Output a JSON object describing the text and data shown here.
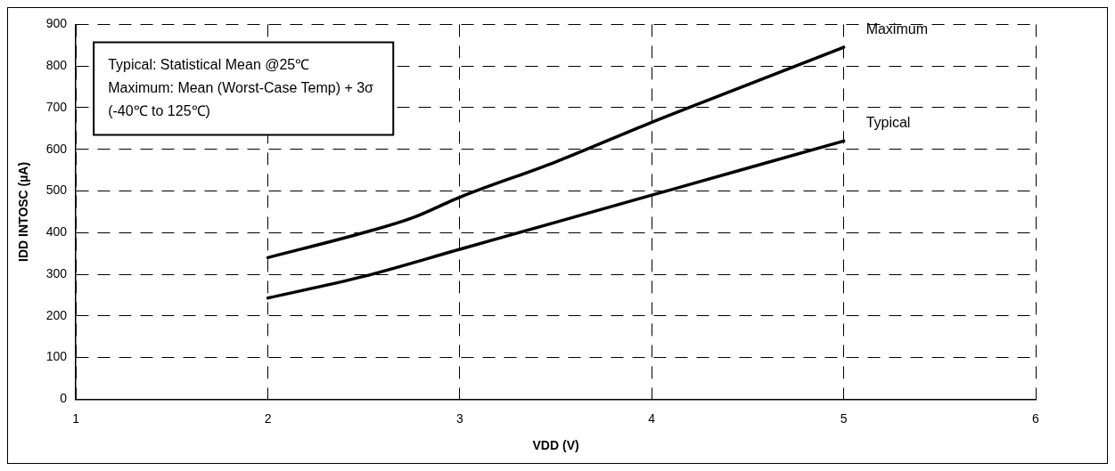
{
  "chart_data": {
    "type": "line",
    "xlabel": "VDD (V)",
    "ylabel": "IDD INTOSC (µA)",
    "xlim": [
      1,
      6
    ],
    "xticks": [
      1,
      2,
      3,
      4,
      5,
      6
    ],
    "ylim": [
      0,
      900
    ],
    "yticks": [
      0,
      100,
      200,
      300,
      400,
      500,
      600,
      700,
      800,
      900
    ],
    "grid": true,
    "line_style": "solid",
    "marker": "none",
    "legend": false,
    "annotations": [
      "Typical: Statistical Mean @25℃",
      "Maximum: Mean (Worst-Case Temp) + 3σ",
      "(-40℃ to 125℃)"
    ],
    "series": [
      {
        "name": "Maximum",
        "color": "#000000",
        "x": [
          2,
          2.5,
          2.75,
          3,
          3.5,
          4,
          4.5,
          5
        ],
        "values": [
          340,
          400,
          435,
          485,
          570,
          665,
          755,
          845
        ]
      },
      {
        "name": "Typical",
        "color": "#000000",
        "x": [
          2,
          2.5,
          3,
          3.5,
          4,
          4.5,
          5
        ],
        "values": [
          243,
          295,
          360,
          425,
          490,
          555,
          620
        ]
      }
    ]
  }
}
